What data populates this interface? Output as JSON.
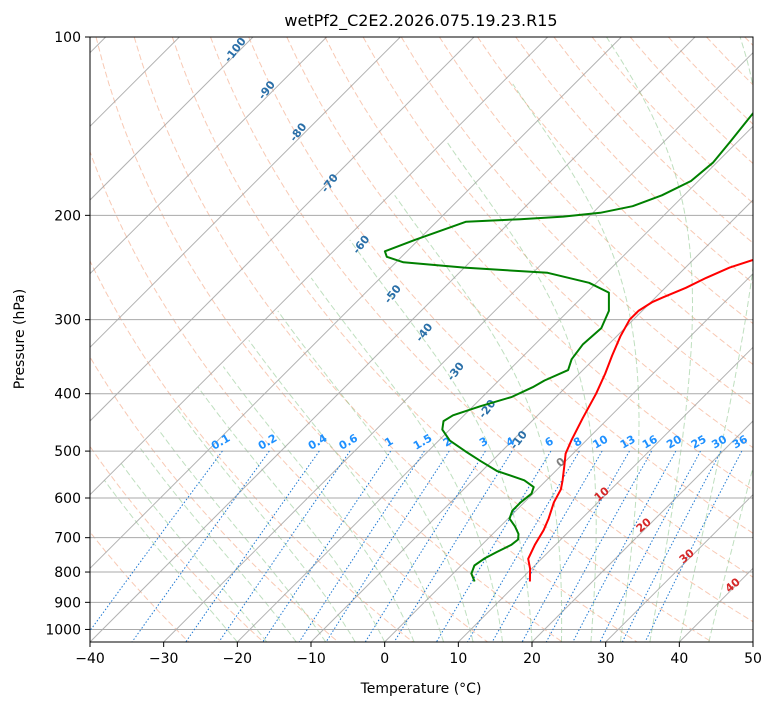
{
  "chart_data": {
    "type": "line",
    "title": "wetPf2_C2E2.2026.075.19.23.R15",
    "xlabel": "Temperature (°C)",
    "ylabel": "Pressure (hPa)",
    "xlim": [
      -40,
      50
    ],
    "ylim": [
      1050,
      100
    ],
    "x_ticks": [
      -40,
      -30,
      -20,
      -10,
      0,
      10,
      20,
      30,
      40,
      50
    ],
    "y_ticks": [
      100,
      200,
      300,
      400,
      500,
      600,
      700,
      800,
      900,
      1000
    ],
    "skew_degrees": 45,
    "series": [
      {
        "name": "Temperature",
        "color": "#ff0000",
        "points": [
          [
            11.5,
            830
          ],
          [
            9.8,
            790
          ],
          [
            8.2,
            760
          ],
          [
            7.2,
            720
          ],
          [
            6.4,
            680
          ],
          [
            5.5,
            650
          ],
          [
            4.0,
            610
          ],
          [
            3.2,
            580
          ],
          [
            2.2,
            560
          ],
          [
            0.5,
            530
          ],
          [
            -1.0,
            505
          ],
          [
            -2.0,
            480
          ],
          [
            -3.5,
            440
          ],
          [
            -5.0,
            400
          ],
          [
            -6.5,
            370
          ],
          [
            -8.0,
            345
          ],
          [
            -9.5,
            320
          ],
          [
            -10.5,
            300
          ],
          [
            -10.5,
            290
          ],
          [
            -9.8,
            280
          ],
          [
            -9.0,
            275
          ],
          [
            -7.2,
            265
          ],
          [
            -5.8,
            255
          ],
          [
            -4.0,
            245
          ],
          [
            -1.0,
            235
          ],
          [
            1.5,
            225
          ],
          [
            2.5,
            215
          ],
          [
            4.0,
            205
          ],
          [
            5.0,
            195
          ],
          [
            5.8,
            185
          ],
          [
            6.5,
            175
          ],
          [
            8.2,
            165
          ],
          [
            10.2,
            150
          ],
          [
            12.5,
            140
          ],
          [
            15.2,
            125
          ],
          [
            17.2,
            115
          ],
          [
            17.2,
            107
          ],
          [
            17.5,
            100
          ]
        ]
      },
      {
        "name": "Dewpoint",
        "color": "#008000",
        "points": [
          [
            4.0,
            830
          ],
          [
            2.5,
            805
          ],
          [
            1.8,
            780
          ],
          [
            2.2,
            760
          ],
          [
            3.0,
            740
          ],
          [
            4.0,
            720
          ],
          [
            4.2,
            705
          ],
          [
            3.5,
            690
          ],
          [
            2.0,
            670
          ],
          [
            0.2,
            650
          ],
          [
            -0.5,
            630
          ],
          [
            -0.5,
            610
          ],
          [
            -0.2,
            590
          ],
          [
            -0.8,
            575
          ],
          [
            -3.0,
            560
          ],
          [
            -8.0,
            540
          ],
          [
            -11.5,
            520
          ],
          [
            -15.0,
            500
          ],
          [
            -18.5,
            480
          ],
          [
            -21.0,
            460
          ],
          [
            -22.0,
            445
          ],
          [
            -21.5,
            435
          ],
          [
            -19.0,
            420
          ],
          [
            -16.0,
            405
          ],
          [
            -14.5,
            390
          ],
          [
            -13.8,
            380
          ],
          [
            -12.0,
            365
          ],
          [
            -13.0,
            350
          ],
          [
            -13.5,
            330
          ],
          [
            -13.2,
            310
          ],
          [
            -14.5,
            290
          ],
          [
            -17.0,
            270
          ],
          [
            -21.0,
            260
          ],
          [
            -28.0,
            250
          ],
          [
            -40.0,
            245
          ],
          [
            -49.0,
            240
          ],
          [
            -52.0,
            235
          ],
          [
            -53.0,
            230
          ],
          [
            -50.5,
            220
          ],
          [
            -46.0,
            205
          ],
          [
            -39.0,
            203
          ],
          [
            -33.5,
            201
          ],
          [
            -29.0,
            198
          ],
          [
            -25.5,
            193
          ],
          [
            -23.0,
            185
          ],
          [
            -21.0,
            175
          ],
          [
            -20.5,
            163
          ],
          [
            -21.0,
            150
          ],
          [
            -21.5,
            140
          ],
          [
            -22.0,
            130
          ],
          [
            -20.0,
            120
          ],
          [
            -16.5,
            110
          ],
          [
            -13.0,
            100
          ]
        ]
      }
    ],
    "dry_adiabats_label": [
      -100,
      -90,
      -80,
      -70,
      -60,
      -50,
      -40,
      -30,
      -20,
      -10
    ],
    "mixing_ratio_labels": [
      "0.1",
      "0.2",
      "0.4",
      "0.6",
      "1",
      "1.5",
      "2",
      "3",
      "4",
      "6",
      "8",
      "10",
      "13",
      "16",
      "20",
      "25",
      "30",
      "36"
    ],
    "moist_adiabat_labels": [
      "0",
      "10",
      "20",
      "30",
      "40"
    ],
    "grid": true
  }
}
